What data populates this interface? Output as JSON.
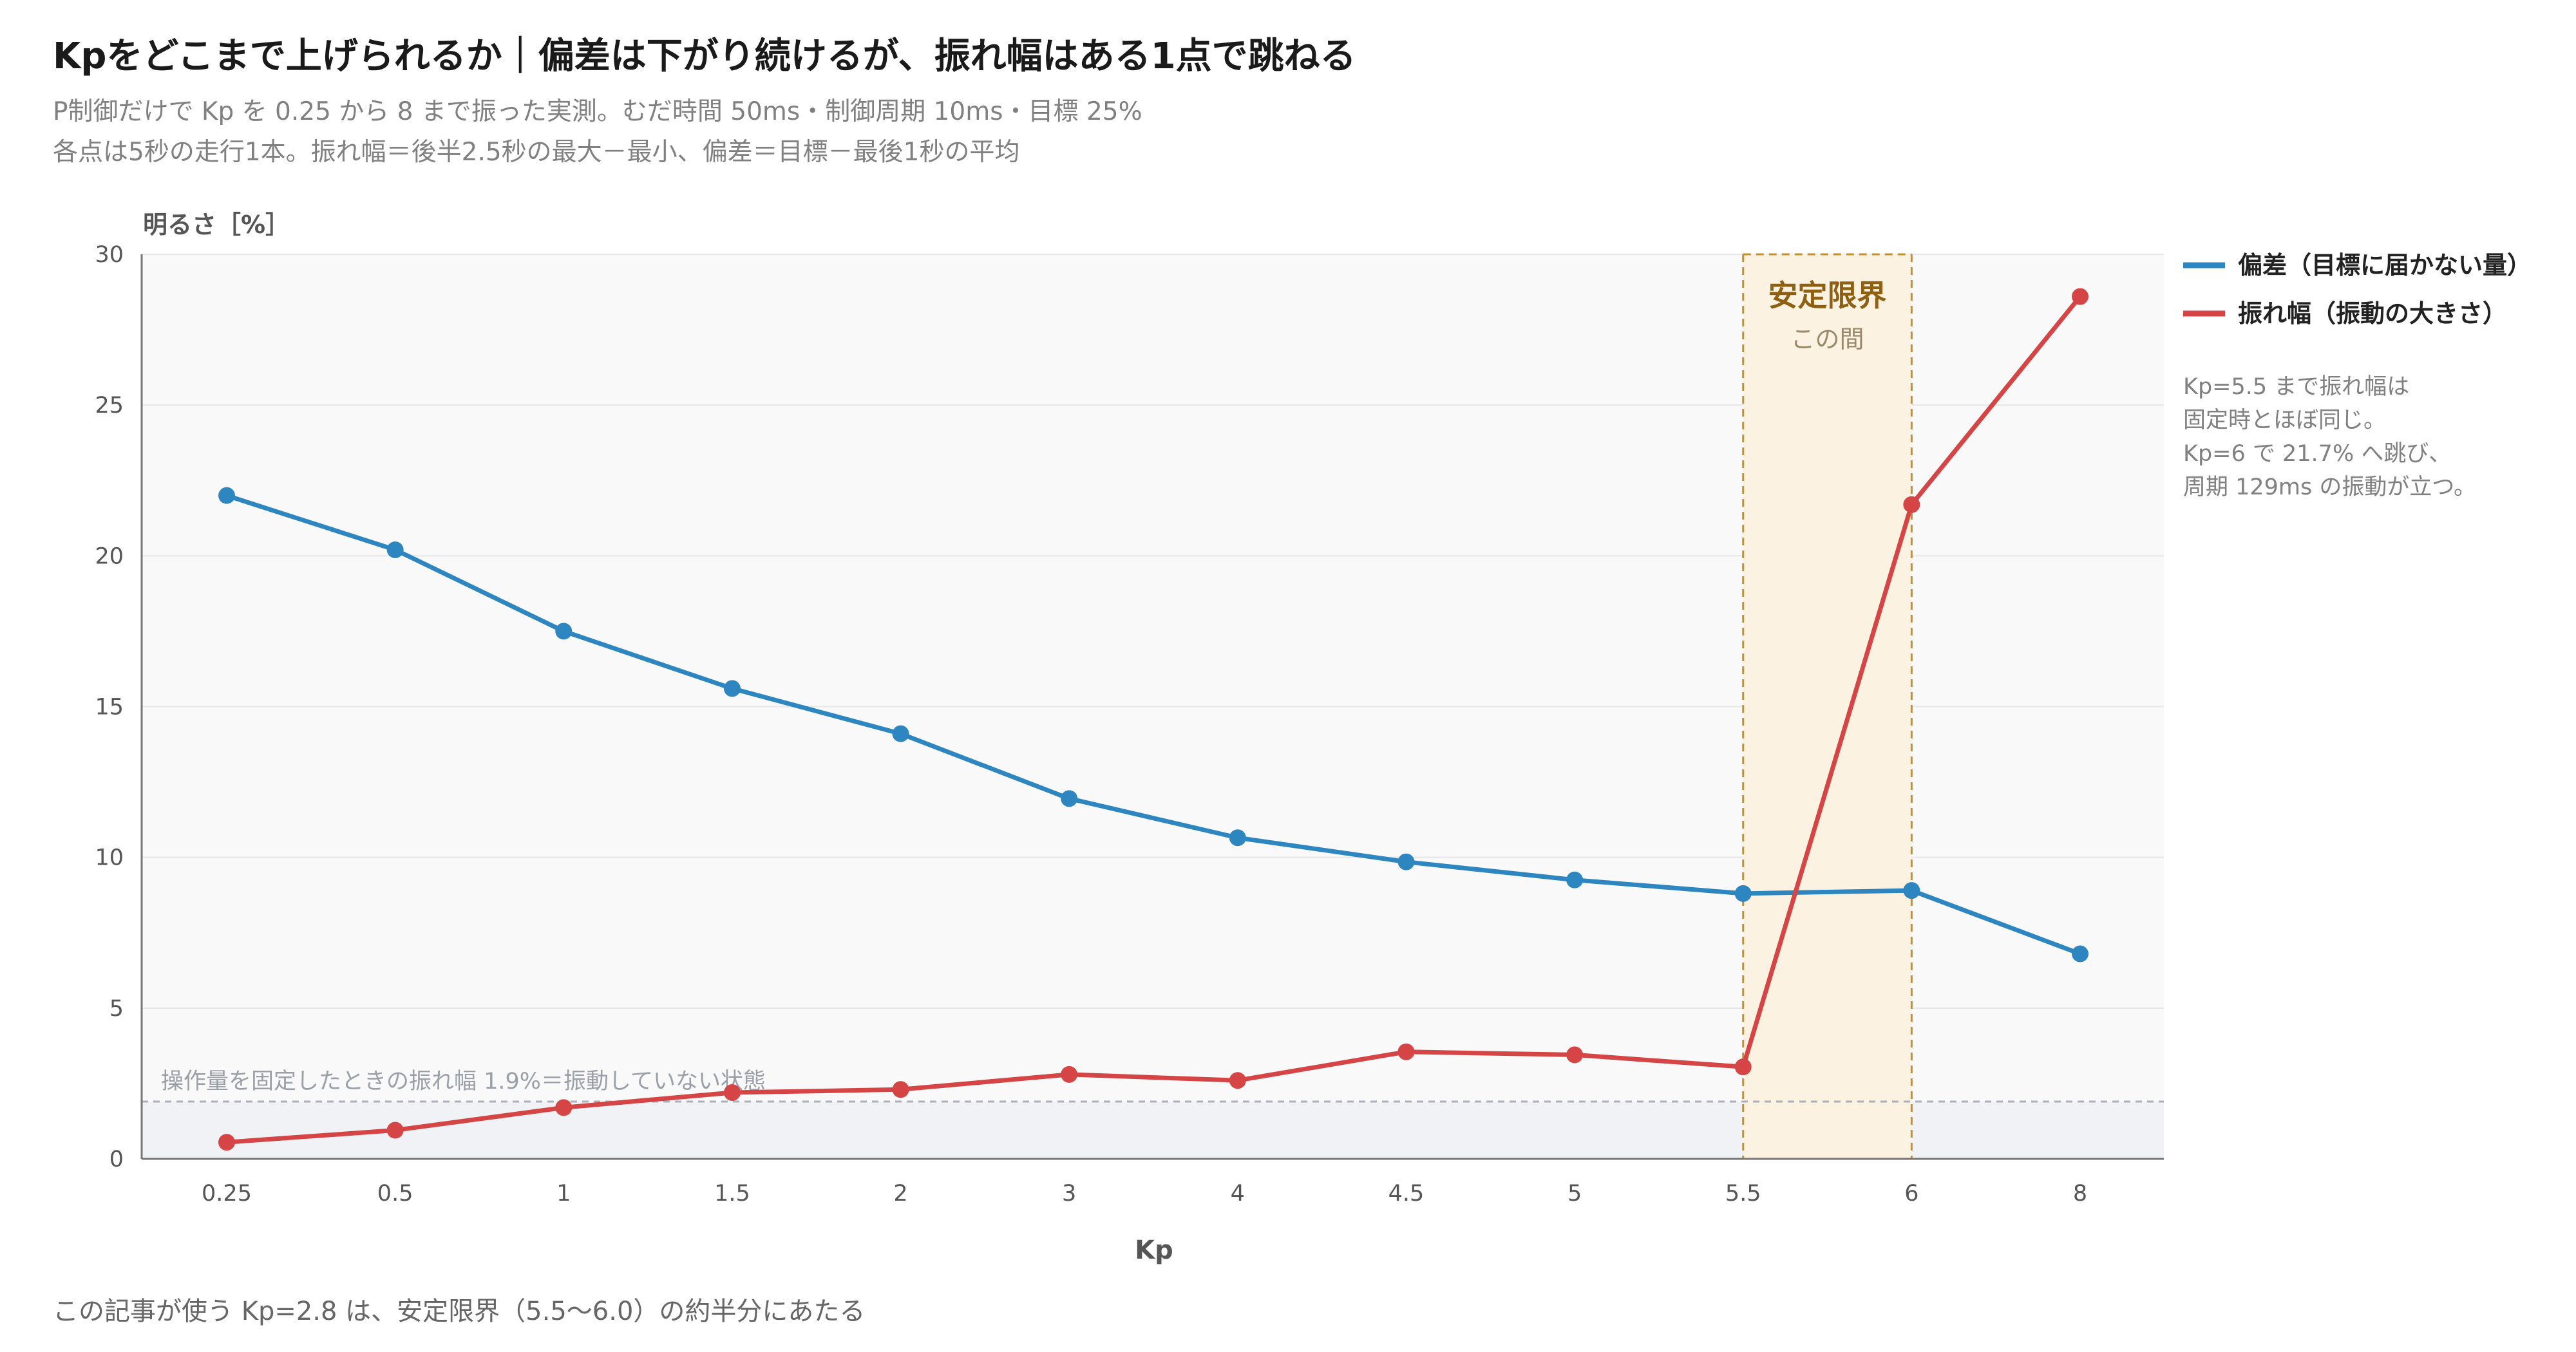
{
  "title": "Kpをどこまで上げられるか｜偏差は下がり続けるが、振れ幅はある1点で跳ねる",
  "subtitle_lines": [
    "P制御だけで Kp を 0.25 から 8 まで振った実測。むだ時間 50ms・制御周期 10ms・目標 25%",
    "各点は5秒の走行1本。振れ幅＝後半2.5秒の最大－最小、偏差＝目標－最後1秒の平均"
  ],
  "footnote": "この記事が使う Kp=2.8 は、安定限界（5.5〜6.0）の約半分にあたる",
  "colors": {
    "deviation": "#2e86c1",
    "amplitude": "#d64545",
    "band_fill": "#fcf2e1",
    "band_edge": "#c8902a",
    "band_text": "#8f5f12",
    "baseline": "#aab0bc",
    "plot_bg": "#f9f9fa",
    "below_baseline_bg": "#f1f2f5"
  },
  "chart_data": {
    "type": "line",
    "title": "Kpをどこまで上げられるか｜偏差は下がり続けるが、振れ幅はある1点で跳ねる",
    "xlabel": "Kp",
    "ylabel": "明るさ［%］",
    "x_scale": "categorical",
    "categories": [
      "0.25",
      "0.5",
      "1",
      "1.5",
      "2",
      "3",
      "4",
      "4.5",
      "5",
      "5.5",
      "6",
      "8"
    ],
    "ylim": [
      0,
      30
    ],
    "yticks": [
      0,
      5,
      10,
      15,
      20,
      25,
      30
    ],
    "grid": true,
    "legend_position": "right",
    "series": [
      {
        "name": "偏差（目標に届かない量）",
        "color": "#2e86c1",
        "values": [
          22.0,
          20.2,
          17.5,
          15.6,
          14.1,
          11.95,
          10.65,
          9.85,
          9.25,
          8.8,
          8.9,
          6.8
        ]
      },
      {
        "name": "振れ幅（振動の大きさ）",
        "color": "#d64545",
        "values": [
          0.55,
          0.95,
          1.7,
          2.2,
          2.3,
          2.8,
          2.6,
          3.55,
          3.45,
          3.05,
          21.7,
          28.6
        ]
      }
    ],
    "reference_line": {
      "y": 1.9,
      "label": "操作量を固定したときの振れ幅 1.9%＝振動していない状態"
    },
    "band": {
      "from_category": "5.5",
      "to_category": "6",
      "title": "安定限界",
      "subtitle": "この間"
    },
    "annotation": [
      "Kp=5.5 まで振れ幅は",
      "固定時とほぼ同じ。",
      "Kp=6 で 21.7% へ跳び、",
      "周期 129ms の振動が立つ。"
    ]
  }
}
